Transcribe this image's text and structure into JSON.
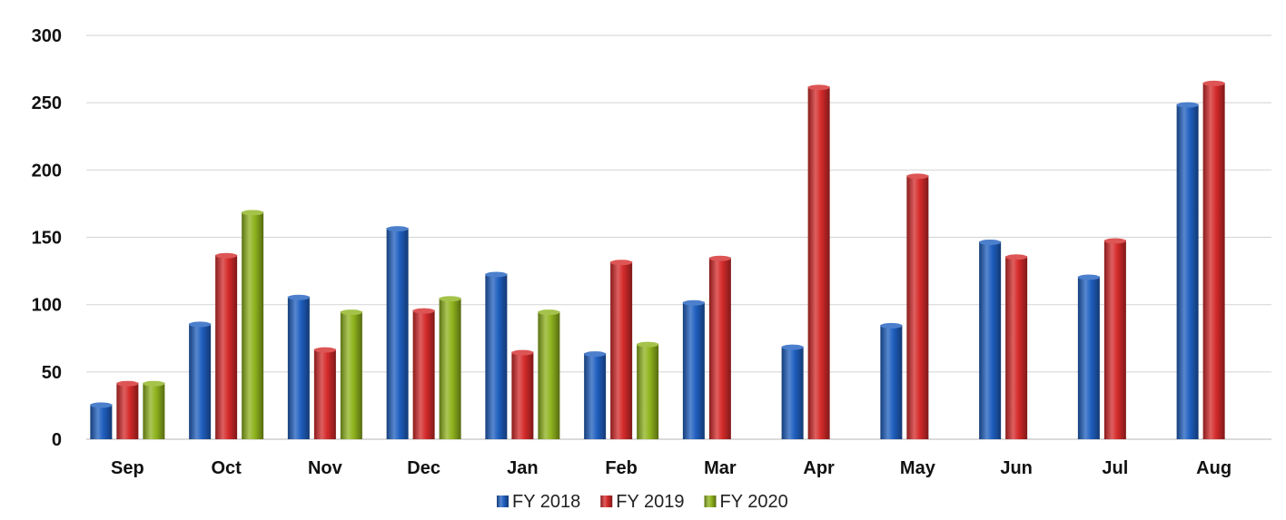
{
  "chart_data": {
    "type": "bar",
    "title": "",
    "xlabel": "",
    "ylabel": "",
    "ylim": [
      0,
      300
    ],
    "yticks": [
      0,
      50,
      100,
      150,
      200,
      250,
      300
    ],
    "grid": true,
    "legend_position": "bottom",
    "categories": [
      "Sep",
      "Oct",
      "Nov",
      "Dec",
      "Jan",
      "Feb",
      "Mar",
      "Apr",
      "May",
      "Jun",
      "Jul",
      "Aug"
    ],
    "series": [
      {
        "name": "FY 2018",
        "color": "#1f5fbf",
        "values": [
          26,
          86,
          106,
          157,
          123,
          64,
          102,
          69,
          85,
          147,
          121,
          249
        ]
      },
      {
        "name": "FY 2019",
        "color": "#d42a2a",
        "values": [
          42,
          137,
          67,
          96,
          65,
          132,
          135,
          262,
          196,
          136,
          148,
          265
        ]
      },
      {
        "name": "FY 2020",
        "color": "#8fb31d",
        "values": [
          42,
          169,
          95,
          105,
          95,
          71,
          null,
          null,
          null,
          null,
          null,
          null
        ]
      }
    ]
  }
}
